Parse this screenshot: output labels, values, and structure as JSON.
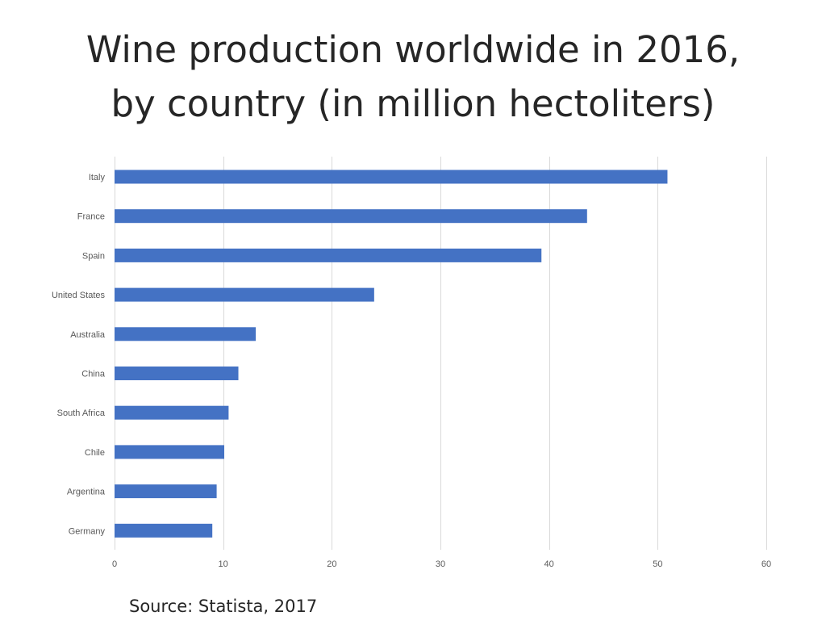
{
  "page": {
    "title_line1": "Wine production worldwide in 2016,",
    "title_line2": "by country (in million hectoliters)",
    "source": "Source: Statista, 2017"
  },
  "colors": {
    "bar": "#4472C4",
    "gridline": "#d9d9d9",
    "label": "#595959",
    "text": "#262626"
  },
  "chart_data": {
    "type": "bar",
    "orientation": "horizontal",
    "categories": [
      "Italy",
      "France",
      "Spain",
      "United States",
      "Australia",
      "China",
      "South Africa",
      "Chile",
      "Argentina",
      "Germany"
    ],
    "values": [
      50.9,
      43.5,
      39.3,
      23.9,
      13.0,
      11.4,
      10.5,
      10.1,
      9.4,
      9.0
    ],
    "xlim": [
      0,
      60
    ],
    "xticks": [
      "0",
      "10",
      "20",
      "30",
      "40",
      "50",
      "60"
    ],
    "grid": true,
    "legend": "none"
  }
}
